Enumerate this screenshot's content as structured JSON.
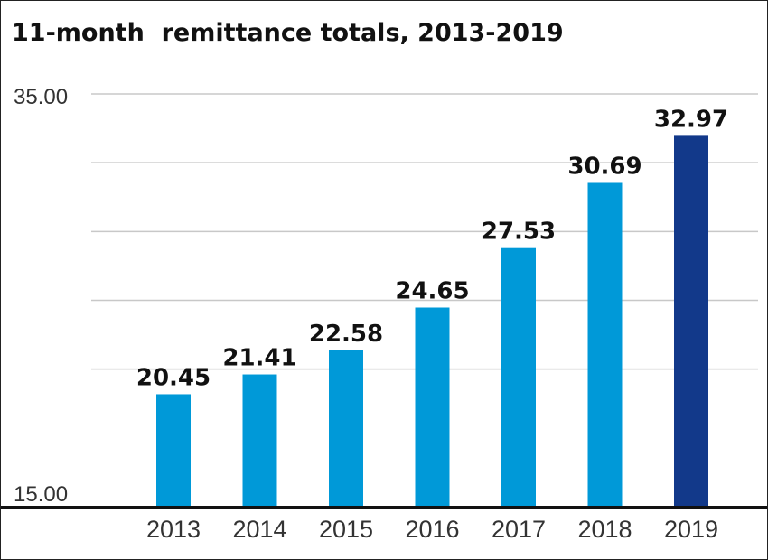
{
  "chart_data": {
    "type": "bar",
    "title": "11-month  remittance totals, 2013-2019",
    "xlabel": "",
    "ylabel": "",
    "categories": [
      "2013",
      "2014",
      "2015",
      "2016",
      "2017",
      "2018",
      "2019"
    ],
    "values": [
      20.45,
      21.41,
      22.58,
      24.65,
      27.53,
      30.69,
      32.97
    ],
    "value_labels": [
      "20.45",
      "21.41",
      "22.58",
      "24.65",
      "27.53",
      "30.69",
      "32.97"
    ],
    "ylim": [
      15,
      35
    ],
    "ytick_labels": [
      "15.00",
      "35.00"
    ],
    "gridlines": 5,
    "grid": true,
    "colors": {
      "bar": "#0099d8",
      "highlight_bar": "#12398a",
      "highlight_index": 6,
      "grid": "#c8c8c8",
      "baseline": "#111111"
    }
  }
}
